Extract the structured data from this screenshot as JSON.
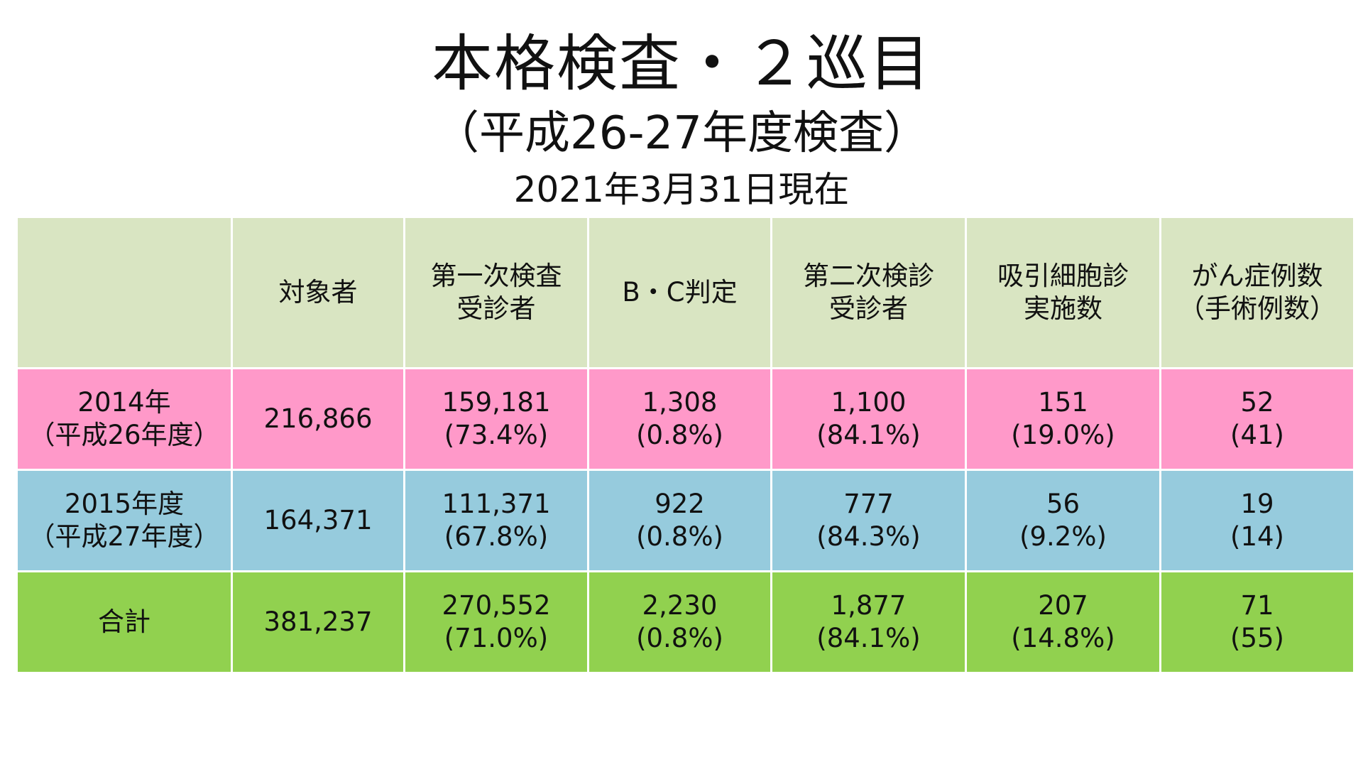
{
  "title": "本格検査・２巡目",
  "subtitle": "（平成26-27年度検査）",
  "as_of": "2021年3月31日現在",
  "table": {
    "headers": [
      [
        ""
      ],
      [
        "対象者"
      ],
      [
        "第一次検査",
        "受診者"
      ],
      [
        "B・C判定"
      ],
      [
        "第二次検診",
        "受診者"
      ],
      [
        "吸引細胞診",
        "実施数"
      ],
      [
        "がん症例数",
        "（手術例数）"
      ]
    ],
    "rows": [
      {
        "key": "2014",
        "label": [
          "2014年",
          "（平成26年度）"
        ],
        "cells": [
          [
            "216,866"
          ],
          [
            "159,181",
            "(73.4%)"
          ],
          [
            "1,308",
            "(0.8%)"
          ],
          [
            "1,100",
            "(84.1%)"
          ],
          [
            "151",
            "(19.0%)"
          ],
          [
            "52",
            "(41)"
          ]
        ]
      },
      {
        "key": "2015",
        "label": [
          "2015年度",
          "（平成27年度）"
        ],
        "cells": [
          [
            "164,371"
          ],
          [
            "111,371",
            "(67.8%)"
          ],
          [
            "922",
            "(0.8%)"
          ],
          [
            "777",
            "(84.3%)"
          ],
          [
            "56",
            "(9.2%)"
          ],
          [
            "19",
            "(14)"
          ]
        ]
      },
      {
        "key": "total",
        "label": [
          "合計"
        ],
        "cells": [
          [
            "381,237"
          ],
          [
            "270,552",
            "(71.0%)"
          ],
          [
            "2,230",
            "(0.8%)"
          ],
          [
            "1,877",
            "(84.1%)"
          ],
          [
            "207",
            "(14.8%)"
          ],
          [
            "71",
            "(55)"
          ]
        ]
      }
    ]
  },
  "colors": {
    "header_bg": "#d9e5c2",
    "row_2014_bg": "#ff99c9",
    "row_2015_bg": "#96cbdd",
    "row_total_bg": "#91d14f"
  }
}
